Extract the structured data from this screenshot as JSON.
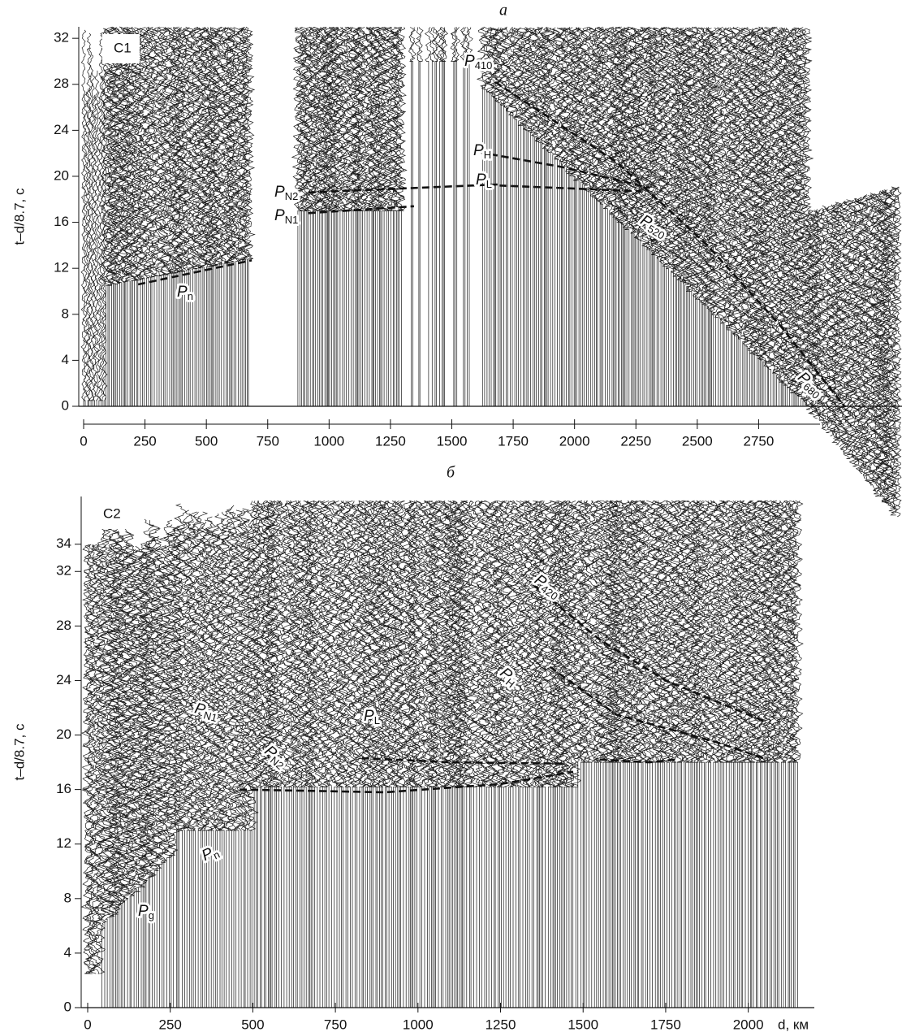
{
  "chart_data": [
    {
      "type": "line",
      "title": "а",
      "panel_label": "C1",
      "ylabel": "t–d/8.7, с",
      "xlim": [
        0,
        3000
      ],
      "ylim": [
        0,
        33
      ],
      "xticks": [
        0,
        250,
        500,
        750,
        1000,
        1250,
        1500,
        1750,
        2000,
        2250,
        2500,
        2750
      ],
      "yticks": [
        0,
        4,
        8,
        12,
        16,
        20,
        24,
        28,
        32
      ],
      "series": [
        {
          "color": "#111111",
          "x": [
            222,
            685
          ],
          "values": [
            10.6,
            12.7
          ]
        },
        {
          "color": "#111111",
          "x": [
            916,
            1346
          ],
          "values": [
            16.8,
            17.4
          ]
        },
        {
          "color": "#111111",
          "x": [
            916,
            1694
          ],
          "values": [
            18.6,
            19.3
          ]
        },
        {
          "color": "#111111",
          "x": [
            1694,
            2273
          ],
          "values": [
            19.2,
            18.7
          ]
        },
        {
          "color": "#111111",
          "x": [
            1611,
            1950,
            2306
          ],
          "values": [
            22.1,
            20.8,
            19.0
          ]
        },
        {
          "color": "#111111",
          "x": [
            1677,
            2173,
            2537,
            2835,
            3100
          ],
          "values": [
            28.2,
            21.2,
            14.1,
            7.1,
            0
          ]
        }
      ],
      "annotations": [
        {
          "text": "P",
          "sub": "n"
        },
        {
          "text": "P",
          "sub": "N2"
        },
        {
          "text": "P",
          "sub": "N1"
        },
        {
          "text": "P",
          "sub": "410"
        },
        {
          "text": "P",
          "sub": "H"
        },
        {
          "text": "P",
          "sub": "L"
        },
        {
          "text": "P",
          "sub": "520"
        },
        {
          "text": "P",
          "sub": "680"
        }
      ]
    },
    {
      "type": "line",
      "title": "б",
      "panel_label": "C2",
      "ylabel": "t–d/8.7, с",
      "xlabel": "d, км",
      "xlim": [
        0,
        2200
      ],
      "ylim": [
        0,
        37.5
      ],
      "xticks": [
        0,
        250,
        500,
        750,
        1000,
        1250,
        1500,
        1750,
        2000
      ],
      "yticks": [
        0,
        4,
        8,
        12,
        16,
        20,
        24,
        28,
        32,
        34
      ],
      "series": [
        {
          "color": "#111111",
          "x": [
            460,
            900,
            1250,
            1470
          ],
          "values": [
            16.0,
            15.8,
            16.4,
            17.3
          ]
        },
        {
          "color": "#111111",
          "x": [
            830,
            1100,
            1450
          ],
          "values": [
            18.3,
            18.0,
            17.9
          ]
        },
        {
          "color": "#111111",
          "x": [
            1550,
            1700,
            1780
          ],
          "values": [
            18.2,
            18.0,
            18.2
          ]
        },
        {
          "color": "#111111",
          "x": [
            1350,
            1550,
            1750,
            2050
          ],
          "values": [
            31,
            27,
            24,
            21
          ]
        },
        {
          "color": "#111111",
          "x": [
            1400,
            1600,
            1900,
            2060
          ],
          "values": [
            25,
            21.5,
            19.5,
            18.2
          ]
        }
      ],
      "annotations": [
        {
          "text": "P",
          "sub": "g"
        },
        {
          "text": "P",
          "sub": "n"
        },
        {
          "text": "P",
          "sub": "N1"
        },
        {
          "text": "P",
          "sub": "N2"
        },
        {
          "text": "P",
          "sub": "L"
        },
        {
          "text": "P",
          "sub": "H"
        },
        {
          "text": "P",
          "sub": "420"
        }
      ]
    }
  ]
}
